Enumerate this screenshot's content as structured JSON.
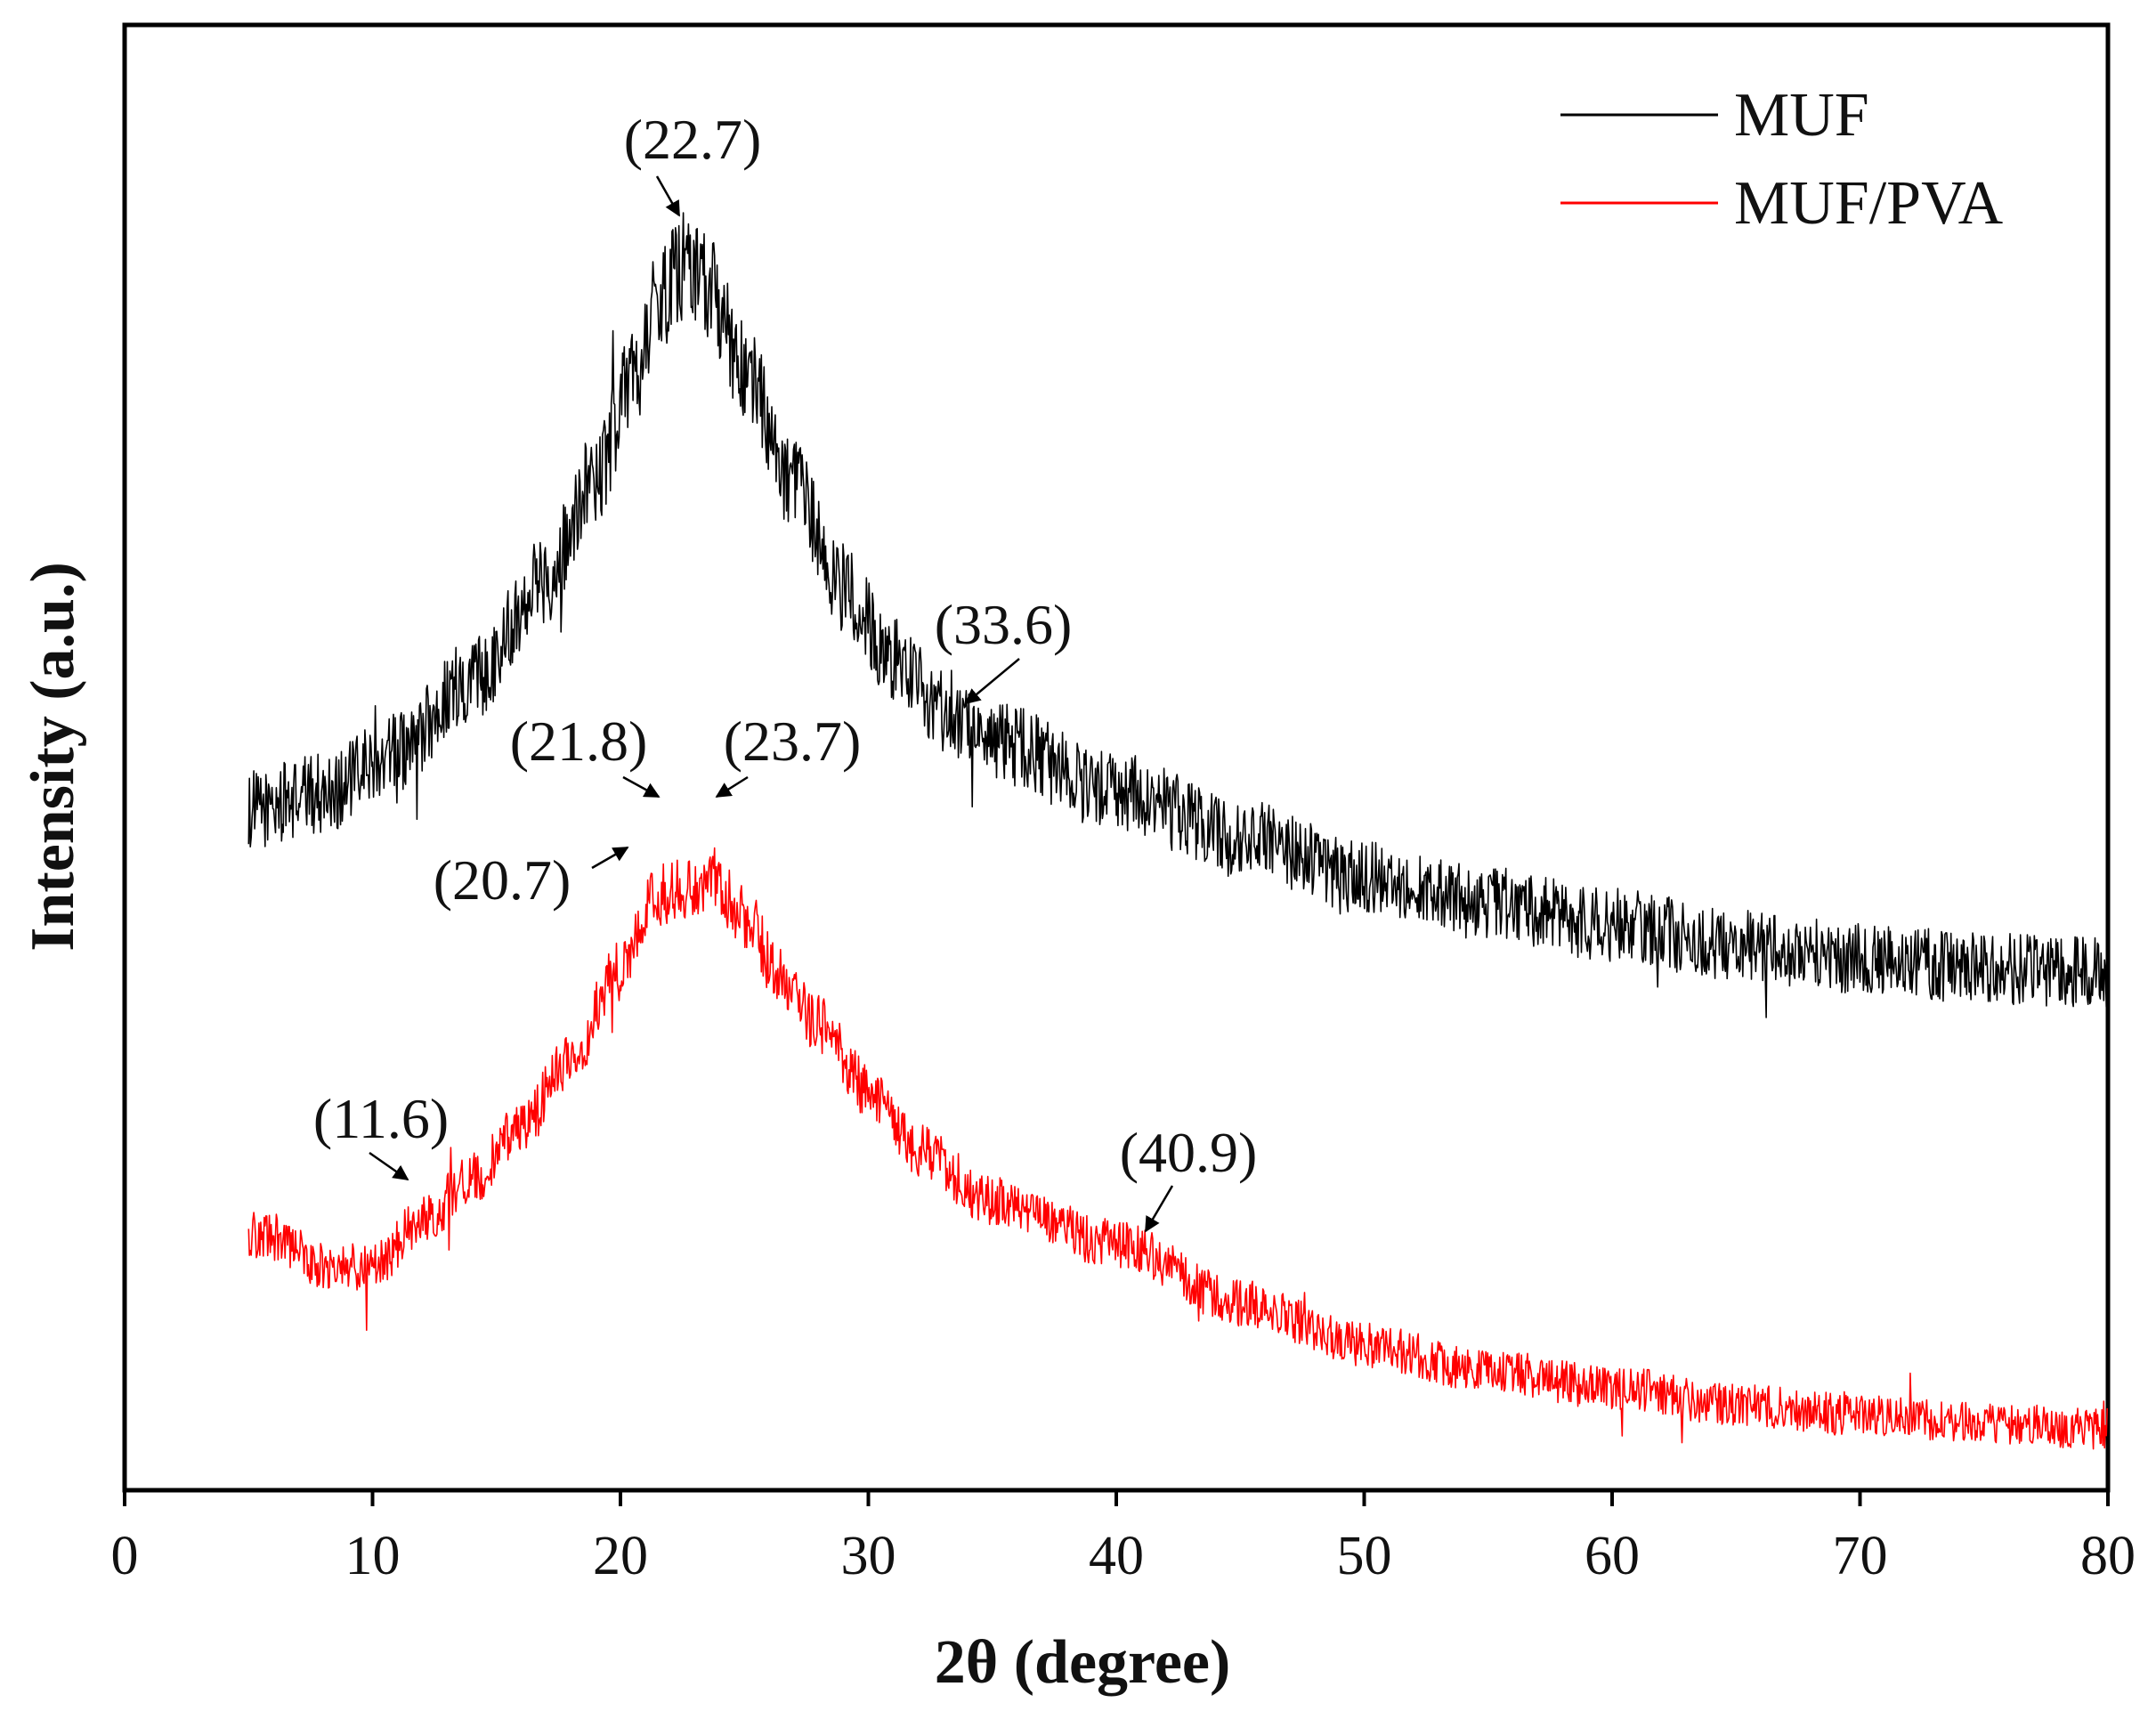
{
  "chart_data": {
    "type": "line",
    "xlabel": "2θ (degree)",
    "ylabel": "Intensity (a.u.)",
    "xlim": [
      0,
      80
    ],
    "ylim": [
      0,
      1
    ],
    "x_ticks": [
      0,
      10,
      20,
      30,
      40,
      50,
      60,
      70,
      80
    ],
    "x_tick_labels": [
      "0",
      "10",
      "20",
      "30",
      "40",
      "50",
      "60",
      "70",
      "80"
    ],
    "y_ticks_shown": false,
    "grid": false,
    "legend_position": "top-right",
    "series": [
      {
        "name": "MUF",
        "color": "#000000",
        "x_range": [
          5,
          80
        ],
        "x": [
          5,
          8,
          11,
          14,
          17,
          19,
          20.5,
          21.5,
          22.7,
          23.5,
          25,
          27,
          29,
          31,
          33,
          35,
          40,
          45,
          50,
          55,
          60,
          65,
          70,
          75,
          80
        ],
        "y": [
          0.464,
          0.476,
          0.504,
          0.554,
          0.623,
          0.693,
          0.758,
          0.812,
          0.837,
          0.823,
          0.764,
          0.683,
          0.615,
          0.567,
          0.533,
          0.511,
          0.476,
          0.446,
          0.419,
          0.401,
          0.386,
          0.372,
          0.363,
          0.356,
          0.353
        ],
        "noise_amplitude": 0.028
      },
      {
        "name": "MUF/PVA",
        "color": "#ff0000",
        "x_range": [
          5,
          80
        ],
        "x": [
          5,
          6,
          8,
          10,
          12,
          14,
          16,
          18,
          20,
          21.5,
          22.5,
          23.7,
          25,
          26.5,
          28,
          30,
          32,
          35,
          40,
          45,
          50,
          55,
          60,
          65,
          70,
          75,
          80
        ],
        "y": [
          0.174,
          0.172,
          0.153,
          0.153,
          0.183,
          0.213,
          0.248,
          0.295,
          0.355,
          0.406,
          0.411,
          0.418,
          0.391,
          0.349,
          0.318,
          0.274,
          0.232,
          0.197,
          0.168,
          0.128,
          0.099,
          0.081,
          0.07,
          0.058,
          0.051,
          0.046,
          0.042
        ],
        "noise_amplitude": 0.024
      }
    ],
    "annotations": [
      {
        "label": "(22.7)",
        "series": "MUF",
        "x": 22.7
      },
      {
        "label": "(33.6)",
        "series": "MUF",
        "x": 33.6
      },
      {
        "label": "(21.8)",
        "series": "MUF/PVA",
        "x": 21.8
      },
      {
        "label": "(23.7)",
        "series": "MUF/PVA",
        "x": 23.7
      },
      {
        "label": "(20.7)",
        "series": "MUF/PVA",
        "x": 20.7
      },
      {
        "label": "(11.6)",
        "series": "MUF/PVA",
        "x": 11.6
      },
      {
        "label": "(40.9)",
        "series": "MUF/PVA",
        "x": 40.9
      }
    ]
  }
}
